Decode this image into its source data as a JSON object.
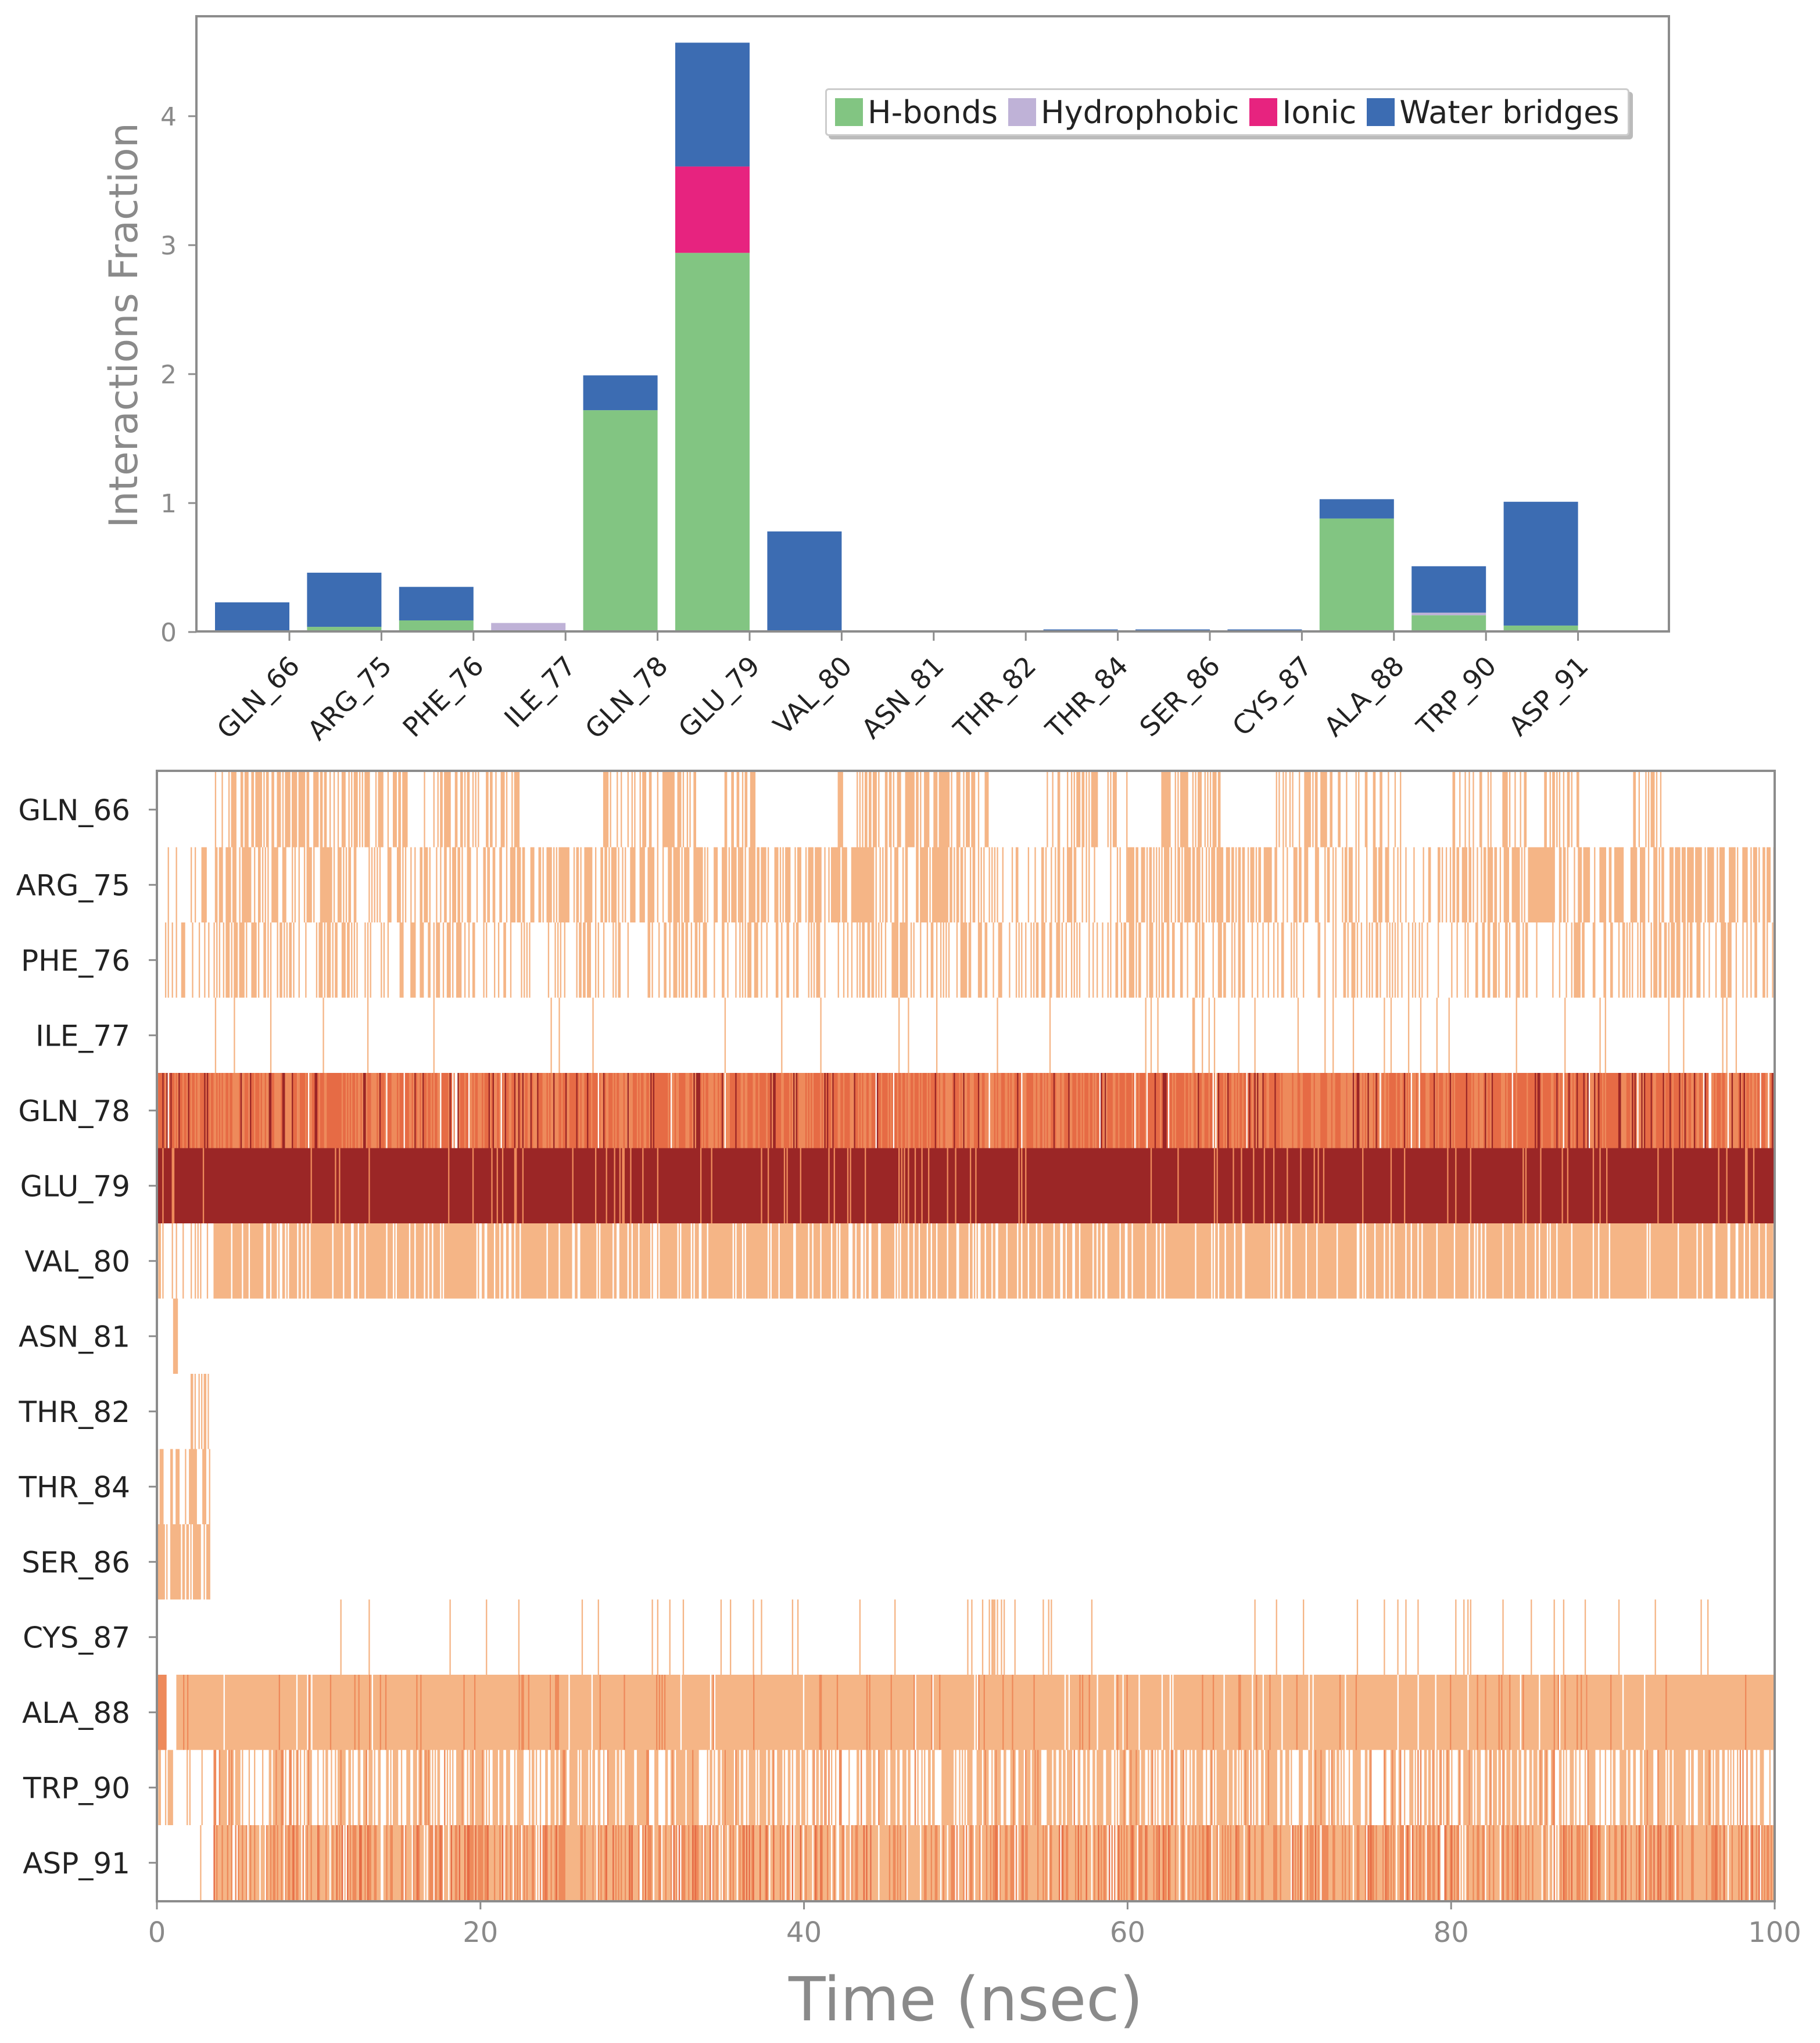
{
  "chart_data": [
    {
      "type": "bar",
      "stacked": true,
      "ylabel": "Interactions Fraction",
      "xlabel": "",
      "ylim": [
        0,
        4.6
      ],
      "yticks": [
        "0",
        "1",
        "2",
        "3",
        "4"
      ],
      "categories": [
        "GLN_66",
        "ARG_75",
        "PHE_76",
        "ILE_77",
        "GLN_78",
        "GLU_79",
        "VAL_80",
        "ASN_81",
        "THR_82",
        "THR_84",
        "SER_86",
        "CYS_87",
        "ALA_88",
        "TRP_90",
        "ASP_91"
      ],
      "series": [
        {
          "name": "H-bonds",
          "color": "#82c582",
          "values": [
            0,
            0.04,
            0.09,
            0,
            1.72,
            2.94,
            0,
            0,
            0,
            0,
            0,
            0,
            0.88,
            0.13,
            0.05
          ]
        },
        {
          "name": "Hydrophobic",
          "color": "#bfb2d7",
          "values": [
            0,
            0,
            0,
            0.07,
            0,
            0,
            0,
            0,
            0,
            0,
            0,
            0,
            0,
            0.02,
            0
          ]
        },
        {
          "name": "Ionic",
          "color": "#e7237f",
          "values": [
            0,
            0,
            0,
            0,
            0,
            0.67,
            0,
            0,
            0,
            0,
            0,
            0,
            0,
            0,
            0
          ]
        },
        {
          "name": "Water bridges",
          "color": "#3c6cb2",
          "values": [
            0.23,
            0.42,
            0.26,
            0,
            0.27,
            0.96,
            0.78,
            0,
            0,
            0.02,
            0.02,
            0.02,
            0.15,
            0.36,
            0.96
          ]
        }
      ],
      "legend_position": "top-right"
    },
    {
      "type": "heatmap",
      "xlabel": "Time (nsec)",
      "xlim": [
        0,
        100
      ],
      "xticks": [
        "0",
        "20",
        "40",
        "60",
        "80",
        "100"
      ],
      "rows": [
        "GLN_66",
        "ARG_75",
        "PHE_76",
        "ILE_77",
        "GLN_78",
        "GLU_79",
        "VAL_80",
        "ASN_81",
        "THR_82",
        "THR_84",
        "SER_86",
        "CYS_87",
        "ALA_88",
        "TRP_90",
        "ASP_91"
      ],
      "colors": {
        "level1": "#f5b586",
        "level2": "#ee8a5b",
        "level3": "#e66b45",
        "level4": "#9b2626"
      },
      "rows_data": [
        {
          "row": "GLN_66",
          "segments": [
            [
              3.5,
              15.5,
              0.6,
              1
            ],
            [
              16.5,
              22.5,
              0.45,
              1
            ],
            [
              27.5,
              33.5,
              0.55,
              1
            ],
            [
              35.0,
              37.0,
              0.6,
              1
            ],
            [
              42.0,
              51.5,
              0.5,
              1
            ],
            [
              55.0,
              60.0,
              0.45,
              1
            ],
            [
              62.0,
              66.0,
              0.5,
              1
            ],
            [
              69.0,
              77.0,
              0.45,
              1
            ],
            [
              80.0,
              88.0,
              0.35,
              1
            ],
            [
              91.0,
              93.0,
              0.3,
              1
            ]
          ]
        },
        {
          "row": "ARG_75",
          "segments": [
            [
              0.0,
              3.5,
              0.1,
              1
            ],
            [
              3.5,
              11.0,
              0.55,
              1
            ],
            [
              11.0,
              20.5,
              0.5,
              1
            ],
            [
              20.5,
              36.0,
              0.55,
              1
            ],
            [
              36.0,
              50.0,
              0.65,
              1
            ],
            [
              50.0,
              60.0,
              0.4,
              1
            ],
            [
              60.0,
              72.0,
              0.55,
              1
            ],
            [
              72.0,
              80.0,
              0.35,
              1
            ],
            [
              80.0,
              100.0,
              0.6,
              1
            ]
          ]
        },
        {
          "row": "PHE_76",
          "segments": [
            [
              0.5,
              20.5,
              0.45,
              1
            ],
            [
              20.5,
              30.0,
              0.25,
              1
            ],
            [
              30.0,
              40.0,
              0.4,
              1
            ],
            [
              40.0,
              55.0,
              0.45,
              1
            ],
            [
              55.0,
              70.0,
              0.45,
              1
            ],
            [
              70.0,
              80.0,
              0.35,
              1
            ],
            [
              80.0,
              100.0,
              0.35,
              1
            ]
          ]
        },
        {
          "row": "ILE_77",
          "segments": [
            [
              0.0,
              100.0,
              0.04,
              1
            ]
          ]
        },
        {
          "row": "GLN_78",
          "segments": [
            [
              0.0,
              100.0,
              0.92,
              2
            ],
            [
              0.0,
              100.0,
              0.55,
              3
            ],
            [
              0.0,
              100.0,
              0.1,
              4
            ]
          ]
        },
        {
          "row": "GLU_79",
          "segments": [
            [
              0.0,
              100.0,
              1.0,
              4
            ],
            [
              0.0,
              100.0,
              0.06,
              2
            ]
          ]
        },
        {
          "row": "VAL_80",
          "segments": [
            [
              0.0,
              3.5,
              0.15,
              1
            ],
            [
              3.5,
              42.0,
              0.85,
              1
            ],
            [
              42.0,
              56.0,
              0.75,
              1
            ],
            [
              56.0,
              86.0,
              0.8,
              1
            ],
            [
              86.0,
              100.0,
              0.9,
              1
            ]
          ]
        },
        {
          "row": "ASN_81",
          "segments": [
            [
              1.0,
              1.3,
              1.0,
              1
            ]
          ]
        },
        {
          "row": "THR_82",
          "segments": [
            [
              2.0,
              3.3,
              0.6,
              1
            ]
          ]
        },
        {
          "row": "THR_84",
          "segments": [
            [
              0.0,
              3.3,
              0.6,
              1
            ]
          ]
        },
        {
          "row": "SER_86",
          "segments": [
            [
              0.0,
              3.3,
              0.7,
              1
            ]
          ]
        },
        {
          "row": "CYS_87",
          "segments": [
            [
              11.0,
              96.0,
              0.04,
              1
            ],
            [
              50.0,
              52.5,
              0.3,
              1
            ]
          ]
        },
        {
          "row": "ALA_88",
          "segments": [
            [
              0.0,
              0.6,
              1.0,
              2
            ],
            [
              0.6,
              1.2,
              0.0,
              1
            ],
            [
              1.2,
              100.0,
              0.97,
              1
            ],
            [
              1.2,
              100.0,
              0.05,
              2
            ]
          ]
        },
        {
          "row": "TRP_90",
          "segments": [
            [
              0.0,
              1.0,
              0.5,
              1
            ],
            [
              1.0,
              3.5,
              0.05,
              1
            ],
            [
              3.5,
              100.0,
              0.55,
              1
            ],
            [
              3.5,
              100.0,
              0.08,
              2
            ]
          ]
        },
        {
          "row": "ASP_91",
          "segments": [
            [
              1.5,
              3.5,
              0.15,
              1
            ],
            [
              3.5,
              100.0,
              0.85,
              1
            ],
            [
              3.5,
              100.0,
              0.35,
              2
            ],
            [
              3.5,
              100.0,
              0.06,
              3
            ]
          ]
        }
      ]
    }
  ]
}
